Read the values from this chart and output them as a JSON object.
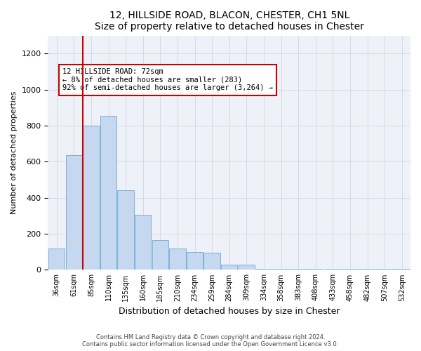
{
  "title1": "12, HILLSIDE ROAD, BLACON, CHESTER, CH1 5NL",
  "title2": "Size of property relative to detached houses in Chester",
  "xlabel": "Distribution of detached houses by size in Chester",
  "ylabel": "Number of detached properties",
  "bar_labels": [
    "36sqm",
    "61sqm",
    "85sqm",
    "110sqm",
    "135sqm",
    "160sqm",
    "185sqm",
    "210sqm",
    "234sqm",
    "259sqm",
    "284sqm",
    "309sqm",
    "334sqm",
    "358sqm",
    "383sqm",
    "408sqm",
    "433sqm",
    "458sqm",
    "482sqm",
    "507sqm",
    "532sqm"
  ],
  "bar_values": [
    120,
    635,
    800,
    855,
    440,
    305,
    165,
    120,
    100,
    95,
    30,
    30,
    5,
    5,
    5,
    5,
    5,
    5,
    5,
    5,
    5
  ],
  "bar_color": "#c5d8ef",
  "bar_edge_color": "#6aaad4",
  "vline_x": 1.5,
  "vline_color": "#cc0000",
  "annotation_text": "12 HILLSIDE ROAD: 72sqm\n← 8% of detached houses are smaller (283)\n92% of semi-detached houses are larger (3,264) →",
  "annotation_box_color": "#ffffff",
  "annotation_box_edge": "#cc0000",
  "ylim": [
    0,
    1300
  ],
  "yticks": [
    0,
    200,
    400,
    600,
    800,
    1000,
    1200
  ],
  "footer1": "Contains HM Land Registry data © Crown copyright and database right 2024.",
  "footer2": "Contains public sector information licensed under the Open Government Licence v3.0.",
  "bg_color": "#eef2f8"
}
